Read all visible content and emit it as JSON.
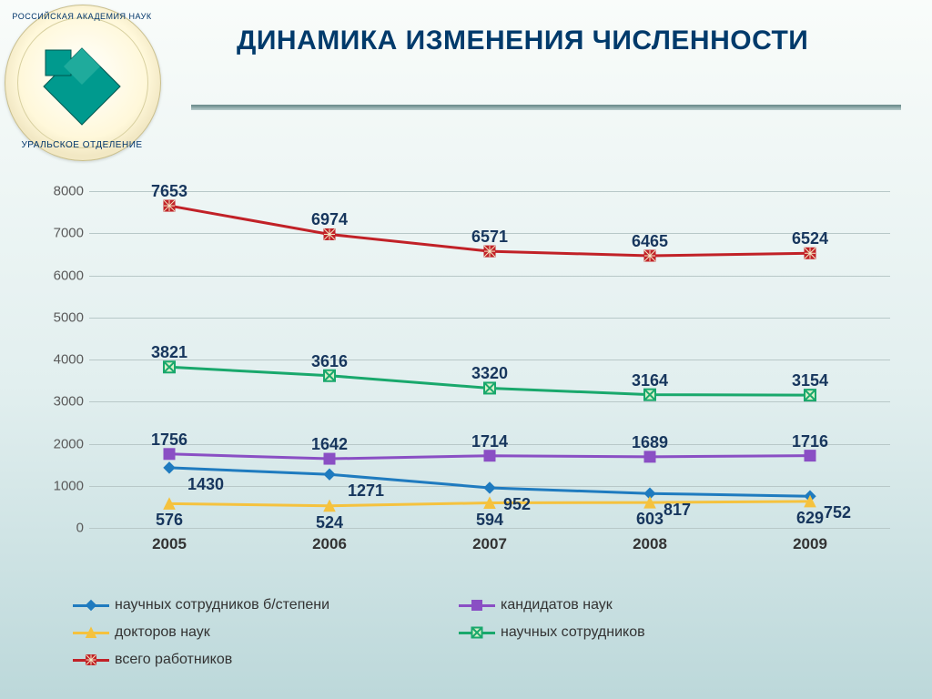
{
  "title_text": "ДИНАМИКА ИЗМЕНЕНИЯ ЧИСЛЕННОСТИ",
  "title_color": "#003a6b",
  "logo": {
    "top_text": "РОССИЙСКАЯ АКАДЕМИЯ НАУК",
    "bottom_text": "УРАЛЬСКОЕ ОТДЕЛЕНИЕ",
    "mark_color": "#009a8e"
  },
  "chart": {
    "type": "line",
    "x_categories": [
      "2005",
      "2006",
      "2007",
      "2008",
      "2009"
    ],
    "ylim": [
      0,
      8000
    ],
    "ytick_step": 1000,
    "grid_color": "#b8c8c8",
    "axis_color": "#8a8a8a",
    "tick_font_size": 15,
    "xlabel_font_size": 17,
    "data_label_font_size": 18,
    "marker_size": 12,
    "line_width": 3,
    "series": [
      {
        "key": "s1",
        "name": "научных сотрудников б/степени",
        "color": "#1f7bbf",
        "label_color": "#17365d",
        "marker": "diamond",
        "marker_fill": "#1f7bbf",
        "values": [
          1430,
          1271,
          952,
          817,
          752
        ],
        "label_pos": "below",
        "label_dx": [
          40,
          40,
          30,
          30,
          30
        ]
      },
      {
        "key": "s2",
        "name": "кандидатов наук",
        "color": "#8a4fc4",
        "label_color": "#17365d",
        "marker": "square",
        "marker_fill": "#8a4fc4",
        "values": [
          1756,
          1642,
          1714,
          1689,
          1716
        ],
        "label_pos": "above",
        "label_dx": [
          0,
          0,
          0,
          0,
          0
        ]
      },
      {
        "key": "s3",
        "name": "докторов наук",
        "color": "#f5c23e",
        "label_color": "#17365d",
        "marker": "triangle",
        "marker_fill": "#f5c23e",
        "values": [
          576,
          524,
          594,
          603,
          629
        ],
        "label_pos": "below",
        "label_dx": [
          0,
          0,
          0,
          0,
          0
        ]
      },
      {
        "key": "s4",
        "name": "научных сотрудников",
        "color": "#19a86c",
        "label_color": "#17365d",
        "marker": "square-x",
        "marker_fill": "#d8f0c8",
        "values": [
          3821,
          3616,
          3320,
          3164,
          3154
        ],
        "label_pos": "above",
        "label_dx": [
          0,
          0,
          0,
          0,
          0
        ]
      },
      {
        "key": "s5",
        "name": "всего работников",
        "color": "#c12127",
        "label_color": "#17365d",
        "marker": "square-star",
        "marker_fill": "#c12127",
        "values": [
          7653,
          6974,
          6571,
          6465,
          6524
        ],
        "label_pos": "above",
        "label_dx": [
          0,
          0,
          0,
          0,
          0
        ]
      }
    ]
  }
}
